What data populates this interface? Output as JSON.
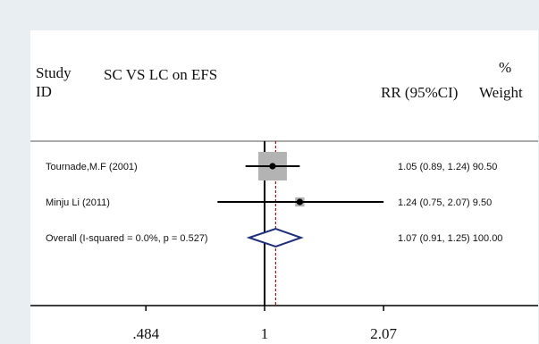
{
  "header": {
    "study_label": "Study",
    "id_label": "ID",
    "title": "SC VS LC on EFS",
    "effect_label": "RR (95%CI)",
    "pct_label": "%",
    "weight_label": "Weight"
  },
  "chart_data": {
    "type": "forest",
    "title": "SC VS LC on EFS",
    "xlabel": "",
    "ylabel": "",
    "x_scale": "log",
    "xticks": [
      {
        "value": 0.484,
        "label": ".484"
      },
      {
        "value": 1,
        "label": "1"
      },
      {
        "value": 2.07,
        "label": "2.07"
      }
    ],
    "null_line": 1,
    "pooled_effect_line": 1.07,
    "studies": [
      {
        "label": "Tournade,M.F (2001)",
        "rr": 1.05,
        "lo": 0.89,
        "hi": 1.24,
        "weight": 90.5,
        "text": "1.05 (0.89, 1.24) 90.50"
      },
      {
        "label": "Minju Li (2011)",
        "rr": 1.24,
        "lo": 0.75,
        "hi": 2.07,
        "weight": 9.5,
        "text": "1.24 (0.75, 2.07) 9.50"
      }
    ],
    "overall": {
      "label": "Overall  (I-squared = 0.0%, p = 0.527)",
      "rr": 1.07,
      "lo": 0.91,
      "hi": 1.25,
      "weight": 100,
      "text": "1.07 (0.91, 1.25) 100.00"
    },
    "colors": {
      "box": "#b3b3b3",
      "diamond": "#1f2f7a",
      "effect_line": "#8b1a1a",
      "null_line": "#000000"
    }
  }
}
